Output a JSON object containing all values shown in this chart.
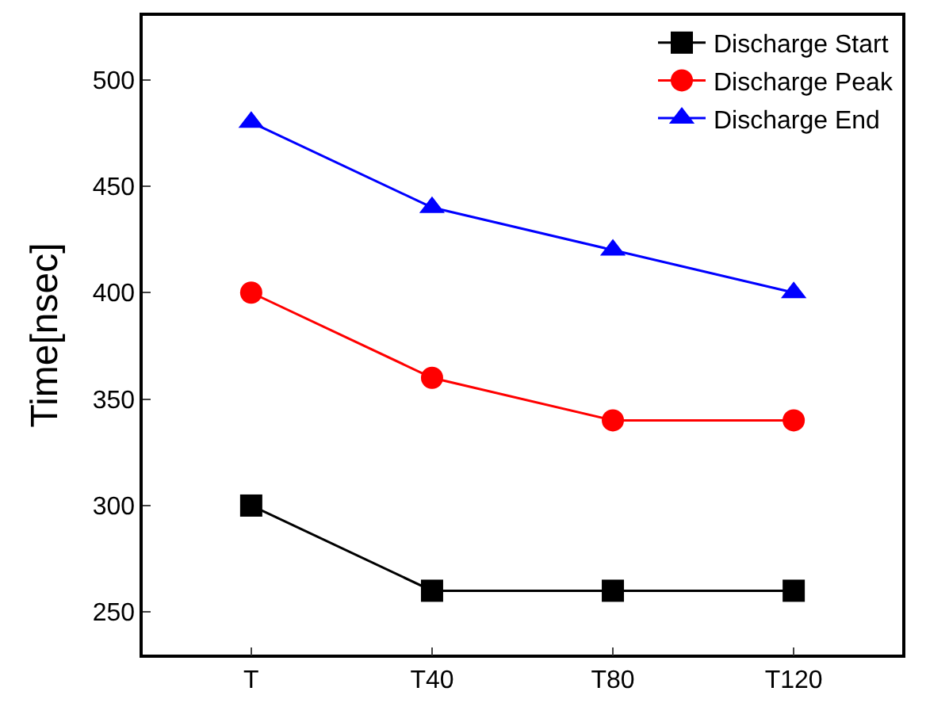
{
  "chart_data": {
    "type": "line",
    "ylabel": "Time[nsec]",
    "categories": [
      "T",
      "T40",
      "T80",
      "T120"
    ],
    "series": [
      {
        "name": "Discharge Start",
        "color": "#000000",
        "marker": "square",
        "values": [
          300,
          260,
          260,
          260
        ]
      },
      {
        "name": "Discharge Peak",
        "color": "#ff0000",
        "marker": "circle",
        "values": [
          400,
          360,
          340,
          340
        ]
      },
      {
        "name": "Discharge End",
        "color": "#0000ff",
        "marker": "triangle",
        "values": [
          480,
          440,
          420,
          400
        ]
      }
    ],
    "ylim": [
      230,
      530
    ],
    "yticks": [
      250,
      300,
      350,
      400,
      450,
      500
    ],
    "legend": "top right",
    "line_style": "solid"
  }
}
